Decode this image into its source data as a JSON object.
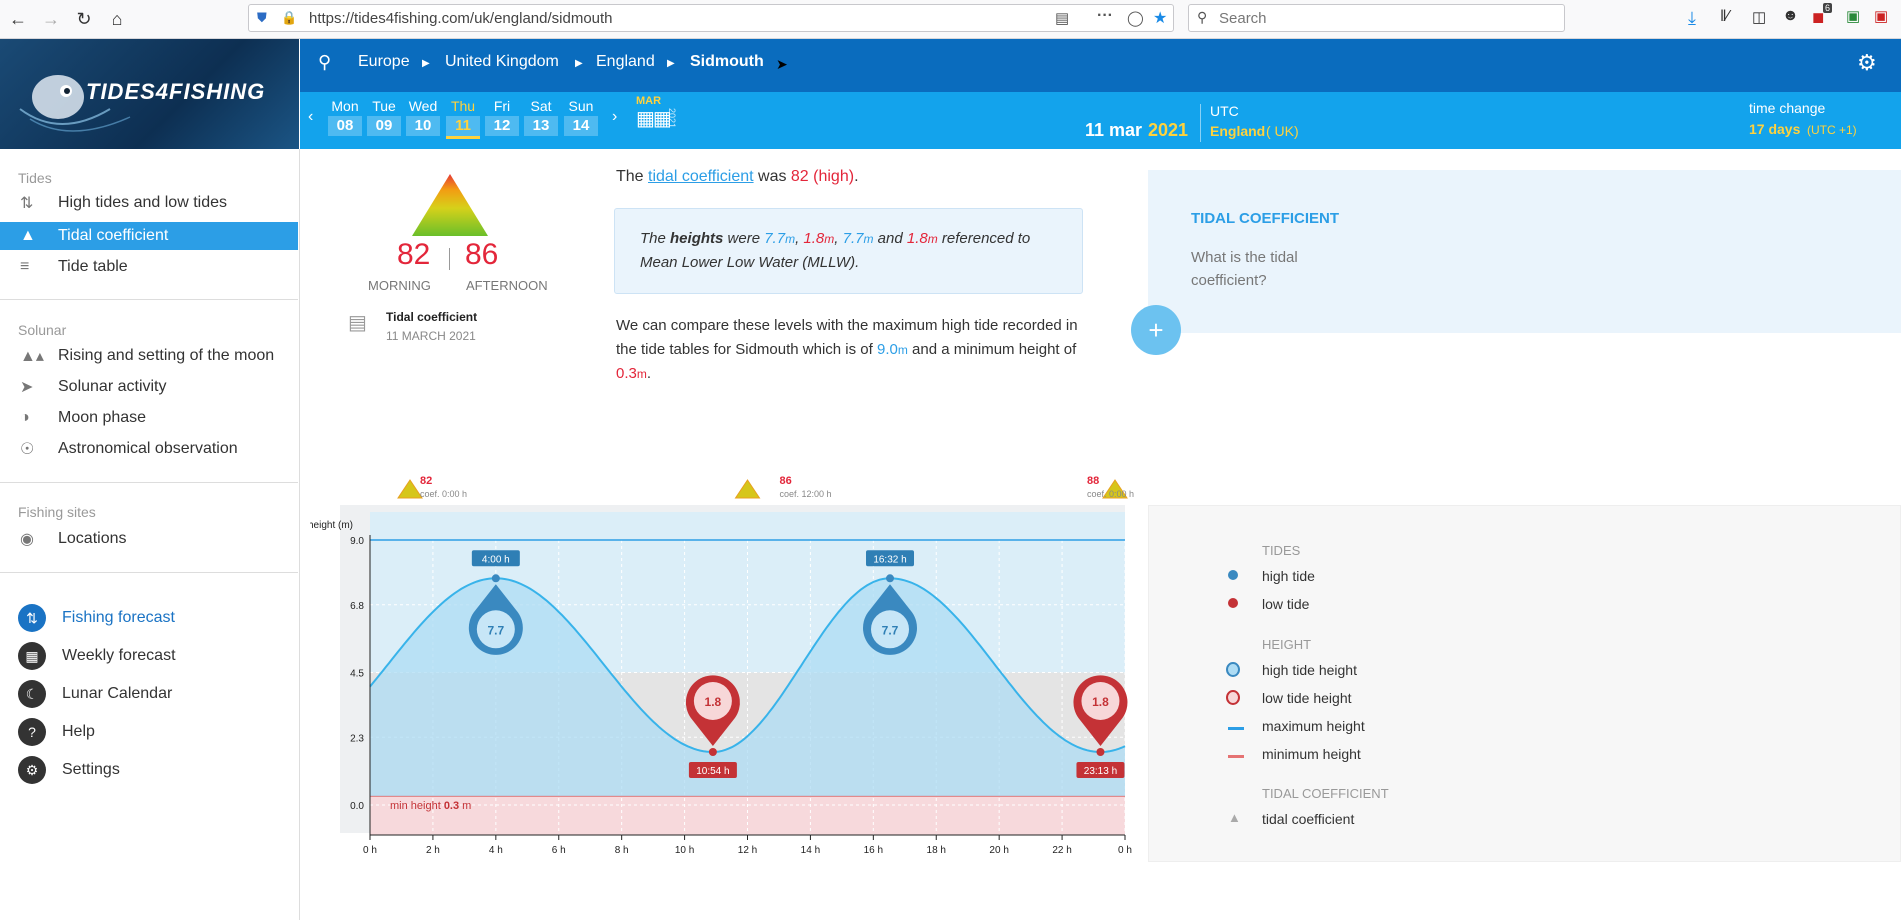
{
  "browser": {
    "url": "https://tides4fishing.com/uk/england/sidmouth",
    "search_placeholder": "Search",
    "badge_count": "6"
  },
  "logo_text": "TIDES4FISHING",
  "breadcrumb": [
    "Europe",
    "United Kingdom",
    "England",
    "Sidmouth"
  ],
  "week": {
    "days": [
      {
        "name": "Mon",
        "num": "08"
      },
      {
        "name": "Tue",
        "num": "09"
      },
      {
        "name": "Wed",
        "num": "10"
      },
      {
        "name": "Thu",
        "num": "11"
      },
      {
        "name": "Fri",
        "num": "12"
      },
      {
        "name": "Sat",
        "num": "13"
      },
      {
        "name": "Sun",
        "num": "14"
      }
    ],
    "month": "MAR",
    "year_vertical": "2021"
  },
  "date_header": {
    "date": "11 mar",
    "year": "2021",
    "tz": "UTC",
    "region": "England",
    "country": "( UK)",
    "time_change_label": "time change",
    "time_change_value": "17 days",
    "time_change_offset": "(UTC +1)"
  },
  "sidebar": {
    "tides_header": "Tides",
    "tides_items": [
      "High tides and low tides",
      "Tidal coefficient",
      "Tide table"
    ],
    "solunar_header": "Solunar",
    "solunar_items": [
      "Rising and setting of the moon",
      "Solunar activity",
      "Moon phase",
      "Astronomical observation"
    ],
    "fishing_header": "Fishing sites",
    "fishing_items": [
      "Locations"
    ],
    "bottom_items": [
      "Fishing forecast",
      "Weekly forecast",
      "Lunar Calendar",
      "Help",
      "Settings"
    ]
  },
  "coef_card": {
    "morning": "82",
    "afternoon": "86",
    "morning_label": "MORNING",
    "afternoon_label": "AFTERNOON",
    "title": "Tidal coefficient",
    "date": "11 MARCH 2021"
  },
  "text": {
    "coef_pre": "The ",
    "coef_link": "tidal coefficient",
    "coef_mid": " was ",
    "coef_value": "82 (high)",
    "coef_end": ".",
    "heights_pre": "The ",
    "heights_bold": "heights",
    "heights_were": " were ",
    "h1": "7.7",
    "h2": "1.8",
    "h3": "7.7",
    "h4": "1.8",
    "unit": "m",
    "heights_and": " and ",
    "heights_post": " referenced to Mean Lower Low Water (MLLW).",
    "compare_pre": "We can compare these levels with the maximum high tide recorded in the tide tables for Sidmouth which is of ",
    "compare_max": "9.0",
    "compare_mid": " and a minimum height of ",
    "compare_min": "0.3",
    "compare_end": "."
  },
  "tc_panel": {
    "title": "TIDAL COEFFICIENT",
    "question": "What is the tidal coefficient?",
    "plus": "+"
  },
  "legend": {
    "tides_header": "TIDES",
    "high_tide": "high tide",
    "low_tide": "low tide",
    "height_header": "HEIGHT",
    "high_tide_height": "high tide height",
    "low_tide_height": "low tide height",
    "max_height": "maximum height",
    "min_height": "minimum height",
    "coef_header": "TIDAL COEFFICIENT",
    "tidal_coef": "tidal coefficient"
  },
  "colors": {
    "dark_blue": "#0a6cbe",
    "light_blue": "#13a3ec",
    "accent_yellow": "#ffd23d",
    "high_tide": "#3a89c0",
    "low_tide": "#c43236",
    "tide_area": "#aedcf4"
  },
  "chart_data": {
    "type": "area",
    "ylabel": "height (m)",
    "ylim": [
      0,
      9.0
    ],
    "yticks": [
      "0.0",
      "2.3",
      "4.5",
      "6.8",
      "9.0"
    ],
    "xticks": [
      "0 h",
      "2 h",
      "4 h",
      "6 h",
      "8 h",
      "10 h",
      "12 h",
      "14 h",
      "16 h",
      "18 h",
      "20 h",
      "22 h",
      "0 h"
    ],
    "xlim": [
      0,
      24
    ],
    "max_height": 9.0,
    "min_height": 0.3,
    "min_height_label": "min height",
    "min_height_value": "0.3",
    "min_height_unit": "m",
    "tides": [
      {
        "type": "high",
        "time": "4:00 h",
        "hour": 4.0,
        "height": 7.7,
        "label": "7.7"
      },
      {
        "type": "low",
        "time": "10:54 h",
        "hour": 10.9,
        "height": 1.8,
        "label": "1.8"
      },
      {
        "type": "high",
        "time": "16:32 h",
        "hour": 16.53,
        "height": 7.7,
        "label": "7.7"
      },
      {
        "type": "low",
        "time": "23:13 h",
        "hour": 23.22,
        "height": 1.8,
        "label": "1.8"
      }
    ],
    "coefficients": [
      {
        "value": "82",
        "label": "coef. 0:00 h",
        "hour": 0
      },
      {
        "value": "86",
        "label": "coef. 12:00 h",
        "hour": 12
      },
      {
        "value": "88",
        "label": "coef. 0:00 h",
        "hour": 24
      }
    ]
  }
}
